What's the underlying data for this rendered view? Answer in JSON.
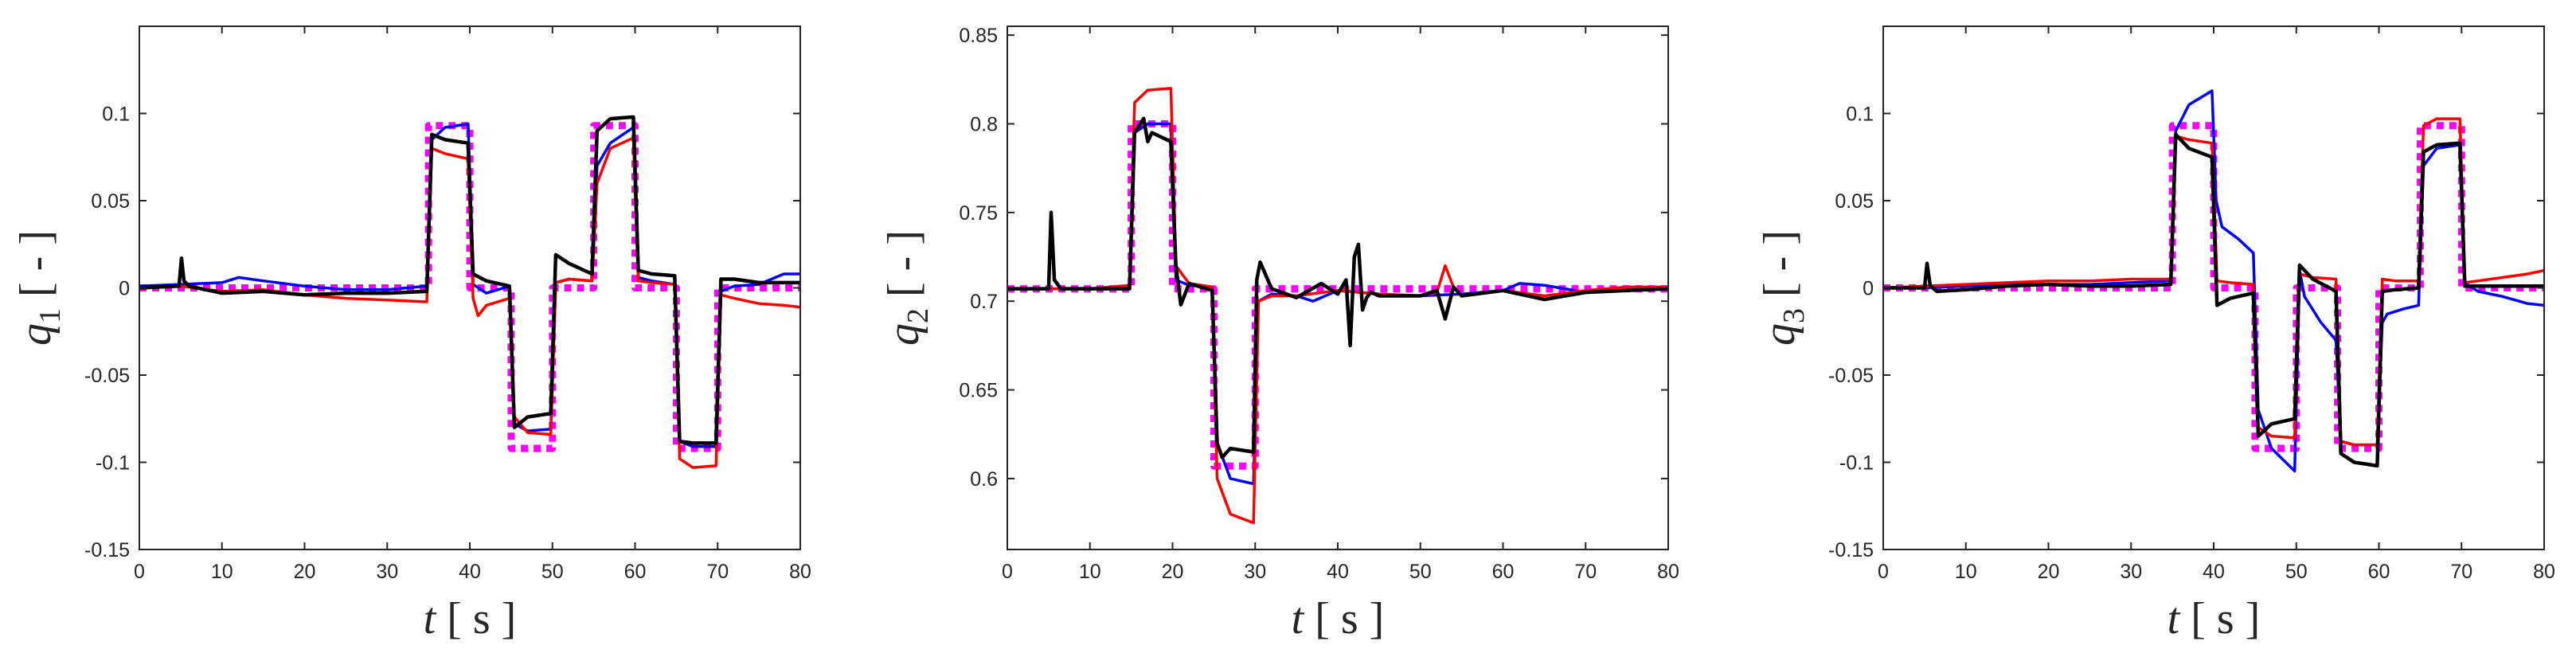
{
  "chart_data": [
    {
      "type": "line",
      "id": "q1",
      "xlabel": "t [ s ]",
      "ylabel": "q1 [ - ]",
      "xlim": [
        0,
        80
      ],
      "ylim": [
        -0.15,
        0.15
      ],
      "xticks": [
        0,
        10,
        20,
        30,
        40,
        50,
        60,
        70,
        80
      ],
      "yticks": [
        -0.15,
        -0.1,
        -0.05,
        0,
        0.05,
        0.1
      ],
      "ytick_labels": [
        "-0.15",
        "-0.1",
        "-0.05",
        "0",
        "0.05",
        "0.1"
      ],
      "xtick_labels": [
        "0",
        "10",
        "20",
        "30",
        "40",
        "50",
        "60",
        "70",
        "80"
      ],
      "grid": false,
      "series": [
        {
          "color": "#ff00ff",
          "style": "dotted",
          "x": [
            0,
            35,
            35,
            40,
            40,
            45,
            45,
            50,
            50,
            55,
            55,
            60,
            60,
            65,
            65,
            70,
            70,
            80
          ],
          "y": [
            0,
            0,
            0.093,
            0.093,
            0,
            0,
            -0.092,
            -0.092,
            0,
            0,
            0.093,
            0.093,
            0,
            0,
            -0.092,
            -0.092,
            0,
            0
          ]
        },
        {
          "color": "#0000ff",
          "style": "solid",
          "x": [
            0,
            5,
            10,
            12,
            15,
            20,
            25,
            30,
            34.8,
            35.4,
            37,
            39.8,
            40.4,
            42,
            44.8,
            45.4,
            47,
            49.8,
            50.4,
            52,
            54.8,
            55.4,
            57,
            59.8,
            60.4,
            62,
            64.8,
            65.4,
            67,
            69.8,
            70.4,
            72,
            75,
            78,
            80
          ],
          "y": [
            0.001,
            0.002,
            0.003,
            0.006,
            0.004,
            0.001,
            -0.001,
            -0.001,
            0.001,
            0.085,
            0.092,
            0.094,
            0.002,
            -0.003,
            0.001,
            -0.078,
            -0.082,
            -0.081,
            0.003,
            0.005,
            0.004,
            0.07,
            0.083,
            0.092,
            0.006,
            0.004,
            0.002,
            -0.088,
            -0.091,
            -0.091,
            -0.002,
            0.001,
            0.002,
            0.008,
            0.008
          ]
        },
        {
          "color": "#ff0000",
          "style": "solid",
          "x": [
            0,
            5,
            10,
            15,
            20,
            25,
            30,
            34.8,
            35.4,
            37,
            39.8,
            40.4,
            41,
            42,
            44.8,
            45.4,
            47,
            49.8,
            50.4,
            52,
            54.8,
            55.4,
            57,
            59.8,
            60.4,
            62,
            64.8,
            65.4,
            67,
            69.8,
            70.4,
            72,
            75,
            78,
            80
          ],
          "y": [
            0,
            0.001,
            -0.002,
            -0.001,
            -0.004,
            -0.006,
            -0.007,
            -0.008,
            0.08,
            0.077,
            0.074,
            -0.006,
            -0.016,
            -0.01,
            -0.006,
            -0.074,
            -0.083,
            -0.084,
            0.003,
            0.005,
            0.004,
            0.06,
            0.08,
            0.086,
            0.004,
            0.003,
            0.002,
            -0.098,
            -0.103,
            -0.102,
            -0.004,
            -0.006,
            -0.009,
            -0.01,
            -0.011
          ]
        },
        {
          "color": "#000000",
          "style": "solid",
          "x": [
            0,
            4.8,
            5.1,
            5.4,
            6,
            8,
            10,
            15,
            20,
            25,
            30,
            34.8,
            35.4,
            37,
            39.8,
            40.4,
            42,
            44.8,
            45.4,
            47,
            49.8,
            50.4,
            52,
            54.8,
            55.4,
            57,
            59.8,
            60.4,
            62,
            64.8,
            65.4,
            67,
            69.8,
            70.4,
            72,
            75,
            78,
            80
          ],
          "y": [
            0,
            0.001,
            0.017,
            0.004,
            0.001,
            -0.001,
            -0.003,
            -0.002,
            -0.004,
            -0.003,
            -0.003,
            -0.002,
            0.088,
            0.085,
            0.083,
            0.008,
            0.004,
            0.001,
            -0.08,
            -0.074,
            -0.072,
            0.019,
            0.014,
            0.008,
            0.09,
            0.097,
            0.098,
            0.01,
            0.008,
            0.007,
            -0.088,
            -0.089,
            -0.089,
            0.005,
            0.005,
            0.003,
            0.003,
            0.003
          ]
        }
      ]
    },
    {
      "type": "line",
      "id": "q2",
      "xlabel": "t [ s ]",
      "ylabel": "q2 [ - ]",
      "xlim": [
        0,
        80
      ],
      "ylim": [
        0.56,
        0.855
      ],
      "xticks": [
        0,
        10,
        20,
        30,
        40,
        50,
        60,
        70,
        80
      ],
      "yticks": [
        0.6,
        0.65,
        0.7,
        0.75,
        0.8,
        0.85
      ],
      "ytick_labels": [
        "0.6",
        "0.65",
        "0.7",
        "0.75",
        "0.8",
        "0.85"
      ],
      "xtick_labels": [
        "0",
        "10",
        "20",
        "30",
        "40",
        "50",
        "60",
        "70",
        "80"
      ],
      "grid": false,
      "series": [
        {
          "color": "#ff00ff",
          "style": "dotted",
          "x": [
            0,
            15,
            15,
            20,
            20,
            25,
            25,
            30,
            30,
            80
          ],
          "y": [
            0.707,
            0.707,
            0.8,
            0.8,
            0.707,
            0.707,
            0.607,
            0.607,
            0.707,
            0.707
          ]
        },
        {
          "color": "#0000ff",
          "style": "solid",
          "x": [
            0,
            10,
            14.8,
            15.4,
            17,
            19.8,
            20.4,
            22,
            24.8,
            25.4,
            27,
            29.8,
            30.4,
            32,
            35,
            37,
            40,
            45,
            50,
            55,
            60,
            62,
            65,
            70,
            75,
            80
          ],
          "y": [
            0.707,
            0.707,
            0.707,
            0.795,
            0.8,
            0.8,
            0.712,
            0.709,
            0.708,
            0.62,
            0.6,
            0.597,
            0.7,
            0.704,
            0.703,
            0.7,
            0.706,
            0.704,
            0.703,
            0.704,
            0.706,
            0.71,
            0.709,
            0.705,
            0.706,
            0.708
          ]
        },
        {
          "color": "#ff0000",
          "style": "solid",
          "x": [
            0,
            10,
            14.8,
            15.4,
            17,
            19.8,
            20.4,
            22,
            24.8,
            25.4,
            27,
            29.8,
            30.4,
            32,
            35,
            40,
            45,
            50,
            52,
            53,
            54,
            55,
            60,
            65,
            70,
            75,
            80
          ],
          "y": [
            0.707,
            0.707,
            0.709,
            0.812,
            0.819,
            0.82,
            0.72,
            0.71,
            0.708,
            0.6,
            0.58,
            0.575,
            0.7,
            0.703,
            0.703,
            0.706,
            0.704,
            0.703,
            0.705,
            0.72,
            0.708,
            0.703,
            0.706,
            0.703,
            0.706,
            0.708,
            0.708
          ]
        },
        {
          "color": "#000000",
          "style": "solid",
          "x": [
            0,
            5,
            5.3,
            5.7,
            6.5,
            10,
            14.8,
            15.4,
            16.5,
            17,
            17.5,
            19.8,
            20.4,
            21,
            22,
            24.8,
            25.4,
            26,
            27,
            29.8,
            30.2,
            30.6,
            32,
            35,
            38,
            40,
            41,
            41.5,
            42,
            42.5,
            43,
            43.5,
            44,
            45,
            50,
            52,
            53,
            54,
            55,
            60,
            65,
            70,
            75,
            80
          ],
          "y": [
            0.707,
            0.707,
            0.75,
            0.712,
            0.707,
            0.707,
            0.707,
            0.795,
            0.803,
            0.79,
            0.795,
            0.79,
            0.72,
            0.698,
            0.71,
            0.706,
            0.62,
            0.612,
            0.617,
            0.615,
            0.712,
            0.722,
            0.707,
            0.702,
            0.71,
            0.704,
            0.712,
            0.675,
            0.725,
            0.732,
            0.695,
            0.702,
            0.705,
            0.703,
            0.703,
            0.706,
            0.69,
            0.708,
            0.703,
            0.706,
            0.701,
            0.705,
            0.706,
            0.707
          ]
        }
      ]
    },
    {
      "type": "line",
      "id": "q3",
      "xlabel": "t [ s ]",
      "ylabel": "q3 [ - ]",
      "xlim": [
        0,
        80
      ],
      "ylim": [
        -0.15,
        0.15
      ],
      "xticks": [
        0,
        10,
        20,
        30,
        40,
        50,
        60,
        70,
        80
      ],
      "yticks": [
        -0.15,
        -0.1,
        -0.05,
        0,
        0.05,
        0.1
      ],
      "ytick_labels": [
        "-0.15",
        "-0.1",
        "-0.05",
        "0",
        "0.05",
        "0.1"
      ],
      "xtick_labels": [
        "0",
        "10",
        "20",
        "30",
        "40",
        "50",
        "60",
        "70",
        "80"
      ],
      "grid": false,
      "series": [
        {
          "color": "#ff00ff",
          "style": "dotted",
          "x": [
            0,
            35,
            35,
            40,
            40,
            45,
            45,
            50,
            50,
            55,
            55,
            60,
            60,
            65,
            65,
            70,
            70,
            80
          ],
          "y": [
            0,
            0,
            0.093,
            0.093,
            0,
            0,
            -0.092,
            -0.092,
            0,
            0,
            -0.092,
            -0.092,
            0,
            0,
            0.093,
            0.093,
            0,
            0
          ]
        },
        {
          "color": "#0000ff",
          "style": "solid",
          "x": [
            0,
            5,
            10,
            15,
            20,
            25,
            30,
            34.8,
            35.4,
            37,
            39.8,
            40.3,
            41,
            43,
            44.8,
            45.4,
            47,
            49.8,
            50.4,
            51,
            53,
            54.8,
            55.4,
            57,
            59.8,
            60.4,
            61,
            63,
            64.8,
            65.4,
            67,
            69.8,
            70.4,
            72,
            75,
            78,
            80
          ],
          "y": [
            0,
            0,
            0.001,
            0.002,
            0.002,
            0.002,
            0.003,
            0.004,
            0.09,
            0.105,
            0.113,
            0.05,
            0.035,
            0.028,
            0.02,
            -0.07,
            -0.092,
            -0.105,
            0.01,
            -0.005,
            -0.02,
            -0.03,
            -0.088,
            -0.09,
            -0.09,
            -0.02,
            -0.015,
            -0.012,
            -0.01,
            0.07,
            0.08,
            0.082,
            0.003,
            -0.002,
            -0.005,
            -0.009,
            -0.01
          ]
        },
        {
          "color": "#ff0000",
          "style": "solid",
          "x": [
            0,
            5,
            10,
            15,
            20,
            25,
            30,
            34.8,
            35.4,
            37,
            39.8,
            40.4,
            42,
            44.8,
            45.4,
            47,
            49.8,
            50.4,
            52,
            54.8,
            55.4,
            57,
            59.8,
            60.4,
            62,
            64.8,
            65.4,
            67,
            69.8,
            70.4,
            72,
            75,
            78,
            80
          ],
          "y": [
            0,
            0.001,
            0.002,
            0.003,
            0.004,
            0.004,
            0.005,
            0.005,
            0.087,
            0.085,
            0.083,
            0.004,
            0.003,
            0.002,
            -0.08,
            -0.085,
            -0.086,
            0.008,
            0.006,
            0.005,
            -0.088,
            -0.09,
            -0.09,
            0.005,
            0.004,
            0.004,
            0.093,
            0.097,
            0.097,
            0.003,
            0.004,
            0.006,
            0.008,
            0.01
          ]
        },
        {
          "color": "#000000",
          "style": "solid",
          "x": [
            0,
            5,
            5.3,
            5.7,
            6.5,
            10,
            15,
            20,
            25,
            30,
            34.8,
            35.4,
            37,
            39.8,
            40.4,
            42,
            44.8,
            45.4,
            47,
            49.8,
            50.4,
            52,
            54.8,
            55.4,
            57,
            59.8,
            60.4,
            62,
            64.8,
            65.4,
            67,
            69.8,
            70.4,
            72,
            75,
            78,
            80
          ],
          "y": [
            0,
            0,
            0.014,
            0.001,
            -0.002,
            -0.001,
            0.001,
            0.002,
            0.001,
            0.001,
            0.002,
            0.088,
            0.08,
            0.075,
            -0.01,
            -0.006,
            -0.003,
            -0.085,
            -0.078,
            -0.075,
            0.013,
            0.005,
            -0.002,
            -0.095,
            -0.1,
            -0.102,
            -0.002,
            -0.001,
            0.0,
            0.078,
            0.082,
            0.083,
            0.001,
            0.001,
            0.001,
            0.001,
            0.001
          ]
        }
      ]
    }
  ]
}
